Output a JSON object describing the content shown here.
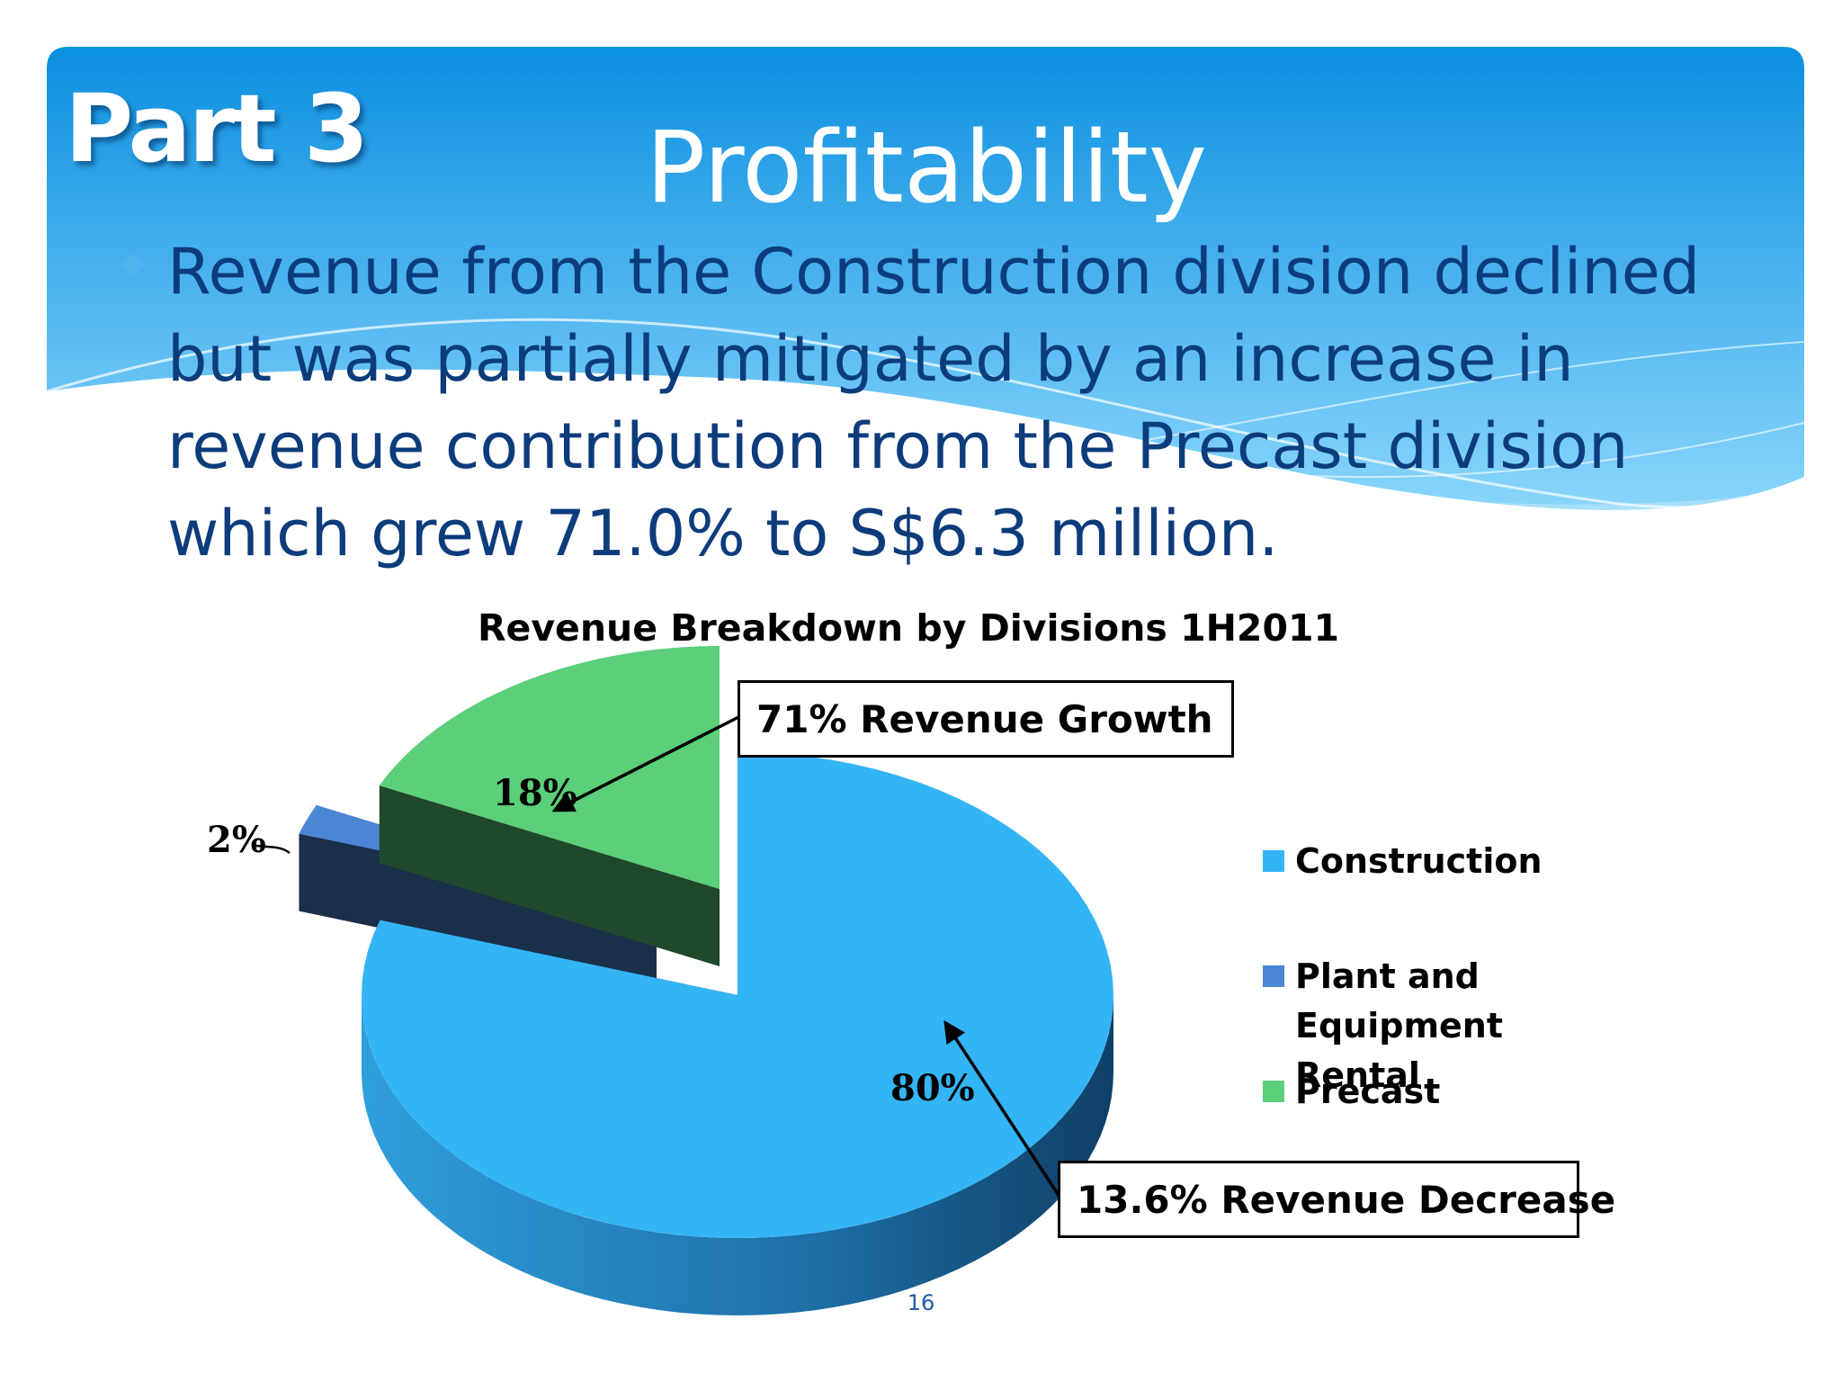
{
  "slide": {
    "part_label": "Part 3",
    "title": "Profitability",
    "body_lines": [
      "Revenue from the Construction division declined",
      "but was partially mitigated by an increase in",
      "revenue contribution from the Precast division",
      "which grew 71.0% to S$6.3 million."
    ],
    "page_number": "16",
    "colors": {
      "banner_top": "#0b8fe0",
      "banner_bottom": "#7cd0fa",
      "body_text": "#0d3c7c"
    }
  },
  "chart_data": {
    "type": "pie",
    "title": "Revenue Breakdown by Divisions 1H2011",
    "style": "3d-exploded",
    "legend_position": "right",
    "series": [
      {
        "name": "Construction",
        "value": 80,
        "label": "80%",
        "color": "#33b5f5"
      },
      {
        "name": "Plant and Equipment Rental",
        "value": 2,
        "label": "2%",
        "color": "#4a86d4"
      },
      {
        "name": "Precast",
        "value": 18,
        "label": "18%",
        "color": "#5bcf7a"
      }
    ],
    "legend_lines": {
      "construction": "Construction",
      "plant_line1": "Plant and Equipment",
      "plant_line2": "Rental",
      "precast": "Precast"
    },
    "annotations": [
      {
        "target": "Precast",
        "text": "71%  Revenue Growth"
      },
      {
        "target": "Construction",
        "text": "13.6% Revenue Decrease"
      }
    ]
  }
}
